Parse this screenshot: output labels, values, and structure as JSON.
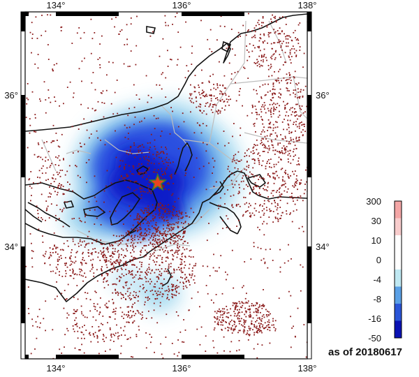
{
  "map": {
    "lon_ticks": [
      "134°",
      "136°",
      "138°"
    ],
    "lat_ticks": [
      "34°",
      "36°"
    ],
    "lon_range": [
      133.5,
      138.0
    ],
    "lat_range": [
      33.0,
      37.0
    ],
    "epicenter": {
      "lon": 135.62,
      "lat": 34.84,
      "marker": "star-icon",
      "color": "#e8431f",
      "stroke": "#3e7f2a"
    }
  },
  "legend": {
    "labels": [
      "300",
      "30",
      "10",
      "0",
      "-4",
      "-8",
      "-16",
      "-50"
    ],
    "colors": [
      "#f4a6a6",
      "#f8cccc",
      "#ffffff",
      "#ffffff",
      "#bfe8f2",
      "#5aa0e6",
      "#2a55d8",
      "#0a12b4"
    ]
  },
  "footer": {
    "asof": "as of 20180617"
  }
}
